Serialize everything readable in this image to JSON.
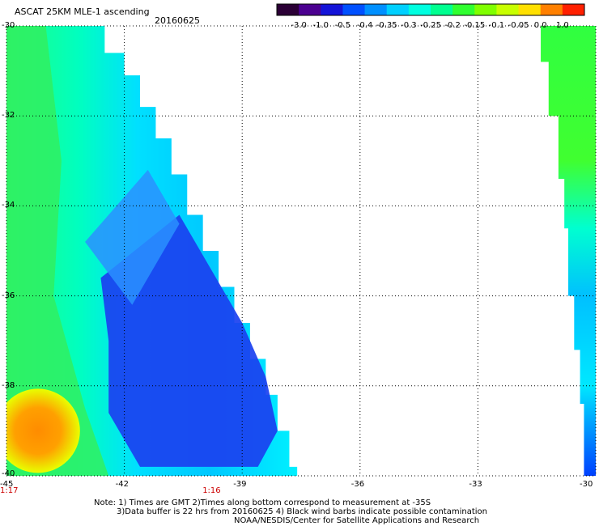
{
  "header": {
    "title": "ASCAT 25KM MLE-1 ascending",
    "date": "20160625"
  },
  "colorbar": {
    "labels": [
      "-3.0",
      "-1.0",
      "-0.5",
      "-0.4",
      "-0.35",
      "-0.3",
      "-0.25",
      "-0.2",
      "-0.15",
      "-0.1",
      "-0.05",
      "0.0",
      "1.0"
    ],
    "colors": [
      "#2b0036",
      "#4b0090",
      "#1414d8",
      "#0050ff",
      "#0090ff",
      "#00d0ff",
      "#00ffe0",
      "#00ff90",
      "#30ff30",
      "#80ff00",
      "#c8ff00",
      "#ffe000",
      "#ff8000",
      "#ff2000"
    ]
  },
  "chart_data": {
    "type": "heatmap",
    "title": "ASCAT 25KM MLE-1 ascending",
    "date": "20160625",
    "xlim": [
      -45,
      -30
    ],
    "ylim": [
      -40,
      -30
    ],
    "x_ticks": [
      "-45",
      "-42",
      "-39",
      "-36",
      "-33",
      "-30"
    ],
    "y_ticks": [
      "-30",
      "-32",
      "-34",
      "-36",
      "-38",
      "-40"
    ],
    "time_labels": [
      {
        "lon": -45,
        "text": "1:17"
      },
      {
        "lon": -39,
        "text": "1:16"
      }
    ],
    "grid": true,
    "swaths": [
      {
        "name": "west",
        "regions": [
          {
            "value_range": [
              -0.3,
              -0.25
            ],
            "description": "cyan band along west edge"
          },
          {
            "value_range": [
              -0.4,
              -0.35
            ],
            "description": "blue core near -40 to -39, -36 to -40"
          },
          {
            "value_range": [
              -0.15,
              0.0
            ],
            "description": "green to orange near -45 to -44, -38.5 to -40"
          }
        ]
      },
      {
        "name": "east",
        "regions": [
          {
            "value_range": [
              -0.2,
              -0.1
            ],
            "description": "green near -30.5, -30 to -33"
          },
          {
            "value_range": [
              -0.35,
              -0.25
            ],
            "description": "cyan/blue along -30.3, -33 to -38.5"
          }
        ]
      }
    ]
  },
  "notes": [
    "Note: 1) Times are GMT 2)Times along bottom correspond to measurement at -35S",
    "3)Data buffer is 22 hrs from 20160625 4) Black wind barbs indicate possible contamination",
    "NOAA/NESDIS/Center for Satellite Applications and Research"
  ]
}
